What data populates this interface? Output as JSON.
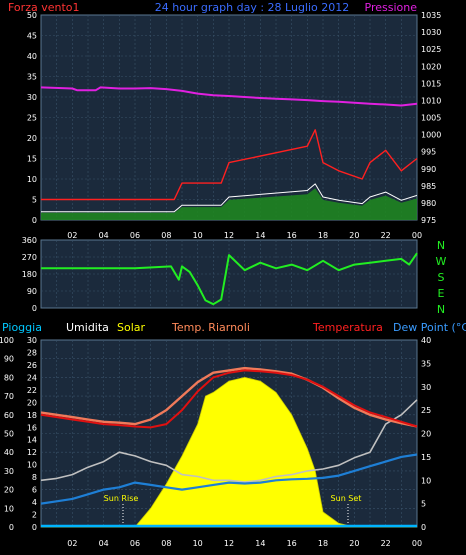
{
  "header": {
    "left_label": "Forza vento1",
    "title": "24 hour graph day : 28 Luglio 2012",
    "right_label": "Pressione"
  },
  "dir_labels": [
    "N",
    "W",
    "S",
    "E",
    "N"
  ],
  "bottom_legend": {
    "pioggia": "Pioggia",
    "umidita": "Umidita",
    "solar": "Solar",
    "temp_riarnoli": "Temp. Riarnoli",
    "temperatura": "Temperatura",
    "dewpoint": "Dew Point (°C)"
  },
  "annotations": {
    "sun_rise": "Sun Rise",
    "sun_set": "Sun Set"
  },
  "colors": {
    "plot_bg": "#1b2a3c",
    "grid": "#3a5268",
    "wind": "#ff2020",
    "gust_fill": "#1e8a1e",
    "wind_avg": "#ffffff",
    "pressure": "#e020e0",
    "direction": "#22ee22",
    "temperature": "#e01010",
    "temp_riarnoli": "#f07a5a",
    "humidity": "#c0c0c0",
    "dewpoint": "#1e7fd6",
    "solar": "#ffff00",
    "rain": "#00b4ff",
    "left_axis_rain": "#66ccff",
    "right_axis_temp": "#ff4040"
  },
  "chart_data": [
    {
      "type": "line",
      "name": "wind-pressure",
      "x_ticks": [
        "02",
        "04",
        "06",
        "08",
        "10",
        "12",
        "14",
        "16",
        "18",
        "20",
        "22",
        "00"
      ],
      "y_left_ticks": [
        0,
        5,
        10,
        15,
        20,
        25,
        30,
        35,
        40,
        45,
        50
      ],
      "ylim_left": [
        0,
        50
      ],
      "y_right_ticks": [
        975,
        980,
        985,
        990,
        995,
        1000,
        1005,
        1010,
        1015,
        1020,
        1025,
        1030,
        1035
      ],
      "ylim_right": [
        975,
        1035
      ],
      "series": [
        {
          "name": "Forza vento1",
          "axis": "left",
          "x": [
            0,
            8.5,
            9,
            11.5,
            12,
            17,
            17.5,
            18,
            19,
            20.5,
            21,
            22,
            23,
            24
          ],
          "y": [
            5,
            5,
            9,
            9,
            14,
            18,
            22,
            14,
            12,
            10,
            14,
            17,
            12,
            15
          ]
        },
        {
          "name": "Pressione",
          "axis": "right",
          "x": [
            0,
            2,
            2.3,
            3.5,
            3.8,
            5,
            6,
            7,
            8,
            9,
            10,
            11,
            12,
            13,
            14,
            15,
            16,
            17,
            18,
            19,
            20,
            21,
            22,
            23,
            24
          ],
          "y": [
            1013.8,
            1013.5,
            1013.0,
            1013.0,
            1013.8,
            1013.5,
            1013.5,
            1013.6,
            1013.3,
            1012.8,
            1012.0,
            1011.5,
            1011.3,
            1011.0,
            1010.7,
            1010.5,
            1010.3,
            1010.1,
            1009.8,
            1009.6,
            1009.3,
            1009.0,
            1008.8,
            1008.5,
            1009.0
          ]
        }
      ]
    },
    {
      "type": "line",
      "name": "wind-direction",
      "y_ticks": [
        0,
        90,
        180,
        270,
        360
      ],
      "ylim": [
        0,
        360
      ],
      "series": [
        {
          "name": "direction",
          "x": [
            0,
            6,
            8.3,
            8.8,
            9,
            9.5,
            10,
            10.5,
            11,
            11.5,
            12,
            13,
            14,
            15,
            16,
            17,
            18,
            19,
            20,
            21,
            22,
            23,
            23.5,
            24
          ],
          "y": [
            210,
            210,
            220,
            150,
            220,
            190,
            120,
            40,
            20,
            45,
            280,
            200,
            240,
            210,
            230,
            200,
            250,
            200,
            230,
            240,
            250,
            260,
            230,
            290
          ]
        }
      ]
    },
    {
      "type": "line",
      "name": "temperature-solar",
      "y_left_ticks": [
        0,
        10,
        20,
        30,
        40,
        50,
        60,
        70,
        80,
        90,
        100
      ],
      "ylim_left": [
        0,
        100
      ],
      "y_rain_ticks": [
        0,
        2,
        4,
        6,
        8,
        10,
        12,
        14,
        16,
        18,
        20,
        22,
        24,
        26,
        28,
        30
      ],
      "ylim_rain": [
        0,
        30
      ],
      "y_right_ticks": [
        0,
        5,
        10,
        15,
        20,
        25,
        30,
        35,
        40
      ],
      "ylim_right": [
        0,
        40
      ],
      "series": [
        {
          "name": "Temperatura",
          "axis": "right",
          "x": [
            0,
            1,
            2,
            3,
            4,
            5,
            6,
            7,
            8,
            9,
            10,
            11,
            12,
            13,
            14,
            15,
            16,
            17,
            18,
            19,
            20,
            21,
            22,
            23,
            24
          ],
          "y": [
            24,
            23.5,
            23,
            22.5,
            22,
            21.8,
            21.5,
            21.3,
            22,
            25,
            29,
            32,
            33,
            33.5,
            33.3,
            33,
            32.5,
            31.5,
            30,
            28,
            26,
            24.5,
            23.5,
            22.5,
            21.5
          ]
        },
        {
          "name": "Temp. Riarnoli",
          "axis": "right",
          "x": [
            0,
            1,
            2,
            3,
            4,
            5,
            6,
            7,
            8,
            9,
            10,
            11,
            12,
            13,
            14,
            15,
            16,
            17,
            18,
            19,
            20,
            21,
            22,
            23,
            24
          ],
          "y": [
            24.5,
            24,
            23.5,
            23,
            22.5,
            22.3,
            22,
            23,
            25,
            28,
            31,
            33,
            33.5,
            34,
            33.7,
            33.3,
            32.8,
            31.5,
            29.8,
            27.5,
            25.5,
            24,
            23,
            22.2,
            21.5
          ]
        },
        {
          "name": "Umidita",
          "axis": "left",
          "x": [
            0,
            1,
            2,
            3,
            4,
            5,
            6,
            7,
            8,
            9,
            10,
            11,
            12,
            13,
            14,
            15,
            16,
            17,
            18,
            19,
            20,
            21,
            22,
            23,
            24
          ],
          "y": [
            25,
            26,
            28,
            32,
            35,
            40,
            38,
            35,
            33,
            28,
            27,
            25,
            25,
            24,
            25,
            27,
            28,
            30,
            31,
            33,
            37,
            40,
            55,
            60,
            68
          ]
        },
        {
          "name": "Dew Point (°C)",
          "axis": "right",
          "x": [
            0,
            1,
            2,
            3,
            4,
            5,
            6,
            7,
            8,
            9,
            10,
            11,
            12,
            13,
            14,
            15,
            16,
            17,
            18,
            19,
            20,
            21,
            22,
            23,
            24
          ],
          "y": [
            5,
            5.5,
            6,
            7,
            8,
            8.5,
            9.5,
            9,
            8.5,
            8,
            8.5,
            9,
            9.5,
            9.3,
            9.5,
            10,
            10.2,
            10.3,
            10.5,
            11,
            12,
            13,
            14,
            15,
            15.5
          ]
        },
        {
          "name": "Solar",
          "axis": "left",
          "x": [
            0,
            6,
            7,
            8,
            9,
            10,
            10.5,
            11,
            12,
            13,
            14,
            15,
            16,
            17,
            17.5,
            18,
            19,
            20,
            24
          ],
          "y": [
            0,
            0,
            10,
            23,
            38,
            55,
            70,
            72,
            78,
            80,
            78,
            72,
            60,
            42,
            30,
            8,
            2,
            0,
            0
          ]
        },
        {
          "name": "Pioggia",
          "axis": "rain",
          "x": [
            0,
            24
          ],
          "y": [
            0,
            0
          ]
        }
      ]
    }
  ]
}
